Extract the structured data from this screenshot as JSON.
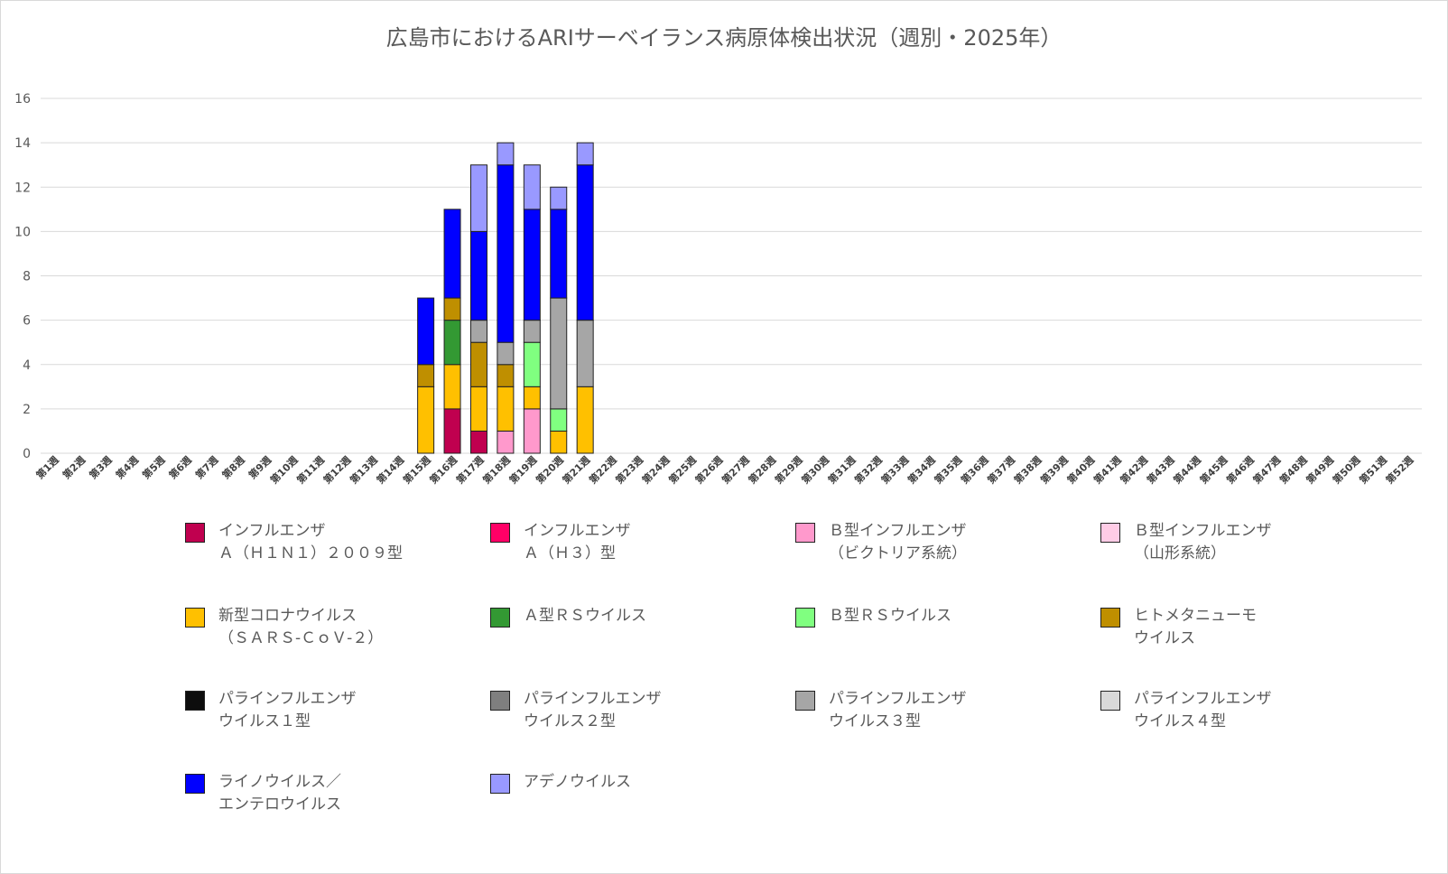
{
  "title": "広島市におけるARIサーベイランス病原体検出状況（週別・2025年）",
  "chart_data": {
    "type": "bar",
    "stacked": true,
    "title": "広島市におけるARIサーベイランス病原体検出状況（週別・2025年）",
    "xlabel": "",
    "ylabel": "",
    "ylim": [
      0,
      16
    ],
    "yticks": [
      0,
      2,
      4,
      6,
      8,
      10,
      12,
      14,
      16
    ],
    "grid": true,
    "legend_position": "bottom",
    "categories": [
      "第1週",
      "第2週",
      "第3週",
      "第4週",
      "第5週",
      "第6週",
      "第7週",
      "第8週",
      "第9週",
      "第10週",
      "第11週",
      "第12週",
      "第13週",
      "第14週",
      "第15週",
      "第16週",
      "第17週",
      "第18週",
      "第19週",
      "第20週",
      "第21週",
      "第22週",
      "第23週",
      "第24週",
      "第25週",
      "第26週",
      "第27週",
      "第28週",
      "第29週",
      "第30週",
      "第31週",
      "第32週",
      "第33週",
      "第34週",
      "第35週",
      "第36週",
      "第37週",
      "第38週",
      "第39週",
      "第40週",
      "第41週",
      "第42週",
      "第43週",
      "第44週",
      "第45週",
      "第46週",
      "第47週",
      "第48週",
      "第49週",
      "第50週",
      "第51週",
      "第52週"
    ],
    "series": [
      {
        "name": "インフルエンザ\nＡ（Ｈ１Ｎ１）２００９型",
        "color": "#c0004f",
        "values": [
          0,
          0,
          0,
          0,
          0,
          0,
          0,
          0,
          0,
          0,
          0,
          0,
          0,
          0,
          0,
          2,
          1,
          0,
          0,
          0,
          0,
          0,
          0,
          0,
          0,
          0,
          0,
          0,
          0,
          0,
          0,
          0,
          0,
          0,
          0,
          0,
          0,
          0,
          0,
          0,
          0,
          0,
          0,
          0,
          0,
          0,
          0,
          0,
          0,
          0,
          0,
          0
        ]
      },
      {
        "name": "インフルエンザ\nＡ（Ｈ３）型",
        "color": "#ff0066",
        "values": [
          0,
          0,
          0,
          0,
          0,
          0,
          0,
          0,
          0,
          0,
          0,
          0,
          0,
          0,
          0,
          0,
          0,
          0,
          0,
          0,
          0,
          0,
          0,
          0,
          0,
          0,
          0,
          0,
          0,
          0,
          0,
          0,
          0,
          0,
          0,
          0,
          0,
          0,
          0,
          0,
          0,
          0,
          0,
          0,
          0,
          0,
          0,
          0,
          0,
          0,
          0,
          0
        ]
      },
      {
        "name": "Ｂ型インフルエンザ\n（ビクトリア系統）",
        "color": "#ff99cc",
        "values": [
          0,
          0,
          0,
          0,
          0,
          0,
          0,
          0,
          0,
          0,
          0,
          0,
          0,
          0,
          0,
          0,
          0,
          1,
          2,
          0,
          0,
          0,
          0,
          0,
          0,
          0,
          0,
          0,
          0,
          0,
          0,
          0,
          0,
          0,
          0,
          0,
          0,
          0,
          0,
          0,
          0,
          0,
          0,
          0,
          0,
          0,
          0,
          0,
          0,
          0,
          0,
          0
        ]
      },
      {
        "name": "Ｂ型インフルエンザ\n（山形系統）",
        "color": "#ffcce6",
        "values": [
          0,
          0,
          0,
          0,
          0,
          0,
          0,
          0,
          0,
          0,
          0,
          0,
          0,
          0,
          0,
          0,
          0,
          0,
          0,
          0,
          0,
          0,
          0,
          0,
          0,
          0,
          0,
          0,
          0,
          0,
          0,
          0,
          0,
          0,
          0,
          0,
          0,
          0,
          0,
          0,
          0,
          0,
          0,
          0,
          0,
          0,
          0,
          0,
          0,
          0,
          0,
          0
        ]
      },
      {
        "name": "新型コロナウイルス\n（ＳＡＲＳ-ＣｏＶ-２）",
        "color": "#ffc000",
        "values": [
          0,
          0,
          0,
          0,
          0,
          0,
          0,
          0,
          0,
          0,
          0,
          0,
          0,
          0,
          3,
          2,
          2,
          2,
          1,
          1,
          3,
          0,
          0,
          0,
          0,
          0,
          0,
          0,
          0,
          0,
          0,
          0,
          0,
          0,
          0,
          0,
          0,
          0,
          0,
          0,
          0,
          0,
          0,
          0,
          0,
          0,
          0,
          0,
          0,
          0,
          0,
          0
        ]
      },
      {
        "name": "Ａ型ＲＳウイルス",
        "color": "#339933",
        "values": [
          0,
          0,
          0,
          0,
          0,
          0,
          0,
          0,
          0,
          0,
          0,
          0,
          0,
          0,
          0,
          2,
          0,
          0,
          0,
          0,
          0,
          0,
          0,
          0,
          0,
          0,
          0,
          0,
          0,
          0,
          0,
          0,
          0,
          0,
          0,
          0,
          0,
          0,
          0,
          0,
          0,
          0,
          0,
          0,
          0,
          0,
          0,
          0,
          0,
          0,
          0,
          0
        ]
      },
      {
        "name": "Ｂ型ＲＳウイルス",
        "color": "#80ff80",
        "values": [
          0,
          0,
          0,
          0,
          0,
          0,
          0,
          0,
          0,
          0,
          0,
          0,
          0,
          0,
          0,
          0,
          0,
          0,
          2,
          1,
          0,
          0,
          0,
          0,
          0,
          0,
          0,
          0,
          0,
          0,
          0,
          0,
          0,
          0,
          0,
          0,
          0,
          0,
          0,
          0,
          0,
          0,
          0,
          0,
          0,
          0,
          0,
          0,
          0,
          0,
          0,
          0
        ]
      },
      {
        "name": "ヒトメタニューモ\nウイルス",
        "color": "#bf8f00",
        "values": [
          0,
          0,
          0,
          0,
          0,
          0,
          0,
          0,
          0,
          0,
          0,
          0,
          0,
          0,
          1,
          1,
          2,
          1,
          0,
          0,
          0,
          0,
          0,
          0,
          0,
          0,
          0,
          0,
          0,
          0,
          0,
          0,
          0,
          0,
          0,
          0,
          0,
          0,
          0,
          0,
          0,
          0,
          0,
          0,
          0,
          0,
          0,
          0,
          0,
          0,
          0,
          0
        ]
      },
      {
        "name": "パラインフルエンザ\nウイルス１型",
        "color": "#0d0d0d",
        "values": [
          0,
          0,
          0,
          0,
          0,
          0,
          0,
          0,
          0,
          0,
          0,
          0,
          0,
          0,
          0,
          0,
          0,
          0,
          0,
          0,
          0,
          0,
          0,
          0,
          0,
          0,
          0,
          0,
          0,
          0,
          0,
          0,
          0,
          0,
          0,
          0,
          0,
          0,
          0,
          0,
          0,
          0,
          0,
          0,
          0,
          0,
          0,
          0,
          0,
          0,
          0,
          0
        ]
      },
      {
        "name": "パラインフルエンザ\nウイルス２型",
        "color": "#7f7f7f",
        "values": [
          0,
          0,
          0,
          0,
          0,
          0,
          0,
          0,
          0,
          0,
          0,
          0,
          0,
          0,
          0,
          0,
          0,
          0,
          0,
          0,
          0,
          0,
          0,
          0,
          0,
          0,
          0,
          0,
          0,
          0,
          0,
          0,
          0,
          0,
          0,
          0,
          0,
          0,
          0,
          0,
          0,
          0,
          0,
          0,
          0,
          0,
          0,
          0,
          0,
          0,
          0,
          0
        ]
      },
      {
        "name": "パラインフルエンザ\nウイルス３型",
        "color": "#a6a6a6",
        "values": [
          0,
          0,
          0,
          0,
          0,
          0,
          0,
          0,
          0,
          0,
          0,
          0,
          0,
          0,
          0,
          0,
          1,
          1,
          1,
          5,
          3,
          0,
          0,
          0,
          0,
          0,
          0,
          0,
          0,
          0,
          0,
          0,
          0,
          0,
          0,
          0,
          0,
          0,
          0,
          0,
          0,
          0,
          0,
          0,
          0,
          0,
          0,
          0,
          0,
          0,
          0,
          0
        ]
      },
      {
        "name": "パラインフルエンザ\nウイルス４型",
        "color": "#d9d9d9",
        "values": [
          0,
          0,
          0,
          0,
          0,
          0,
          0,
          0,
          0,
          0,
          0,
          0,
          0,
          0,
          0,
          0,
          0,
          0,
          0,
          0,
          0,
          0,
          0,
          0,
          0,
          0,
          0,
          0,
          0,
          0,
          0,
          0,
          0,
          0,
          0,
          0,
          0,
          0,
          0,
          0,
          0,
          0,
          0,
          0,
          0,
          0,
          0,
          0,
          0,
          0,
          0,
          0
        ]
      },
      {
        "name": "ライノウイルス／\nエンテロウイルス",
        "color": "#0000ff",
        "values": [
          0,
          0,
          0,
          0,
          0,
          0,
          0,
          0,
          0,
          0,
          0,
          0,
          0,
          0,
          3,
          4,
          4,
          8,
          5,
          4,
          7,
          0,
          0,
          0,
          0,
          0,
          0,
          0,
          0,
          0,
          0,
          0,
          0,
          0,
          0,
          0,
          0,
          0,
          0,
          0,
          0,
          0,
          0,
          0,
          0,
          0,
          0,
          0,
          0,
          0,
          0,
          0
        ]
      },
      {
        "name": "アデノウイルス",
        "color": "#9999ff",
        "values": [
          0,
          0,
          0,
          0,
          0,
          0,
          0,
          0,
          0,
          0,
          0,
          0,
          0,
          0,
          0,
          0,
          3,
          1,
          2,
          1,
          1,
          0,
          0,
          0,
          0,
          0,
          0,
          0,
          0,
          0,
          0,
          0,
          0,
          0,
          0,
          0,
          0,
          0,
          0,
          0,
          0,
          0,
          0,
          0,
          0,
          0,
          0,
          0,
          0,
          0,
          0,
          0
        ]
      }
    ]
  }
}
